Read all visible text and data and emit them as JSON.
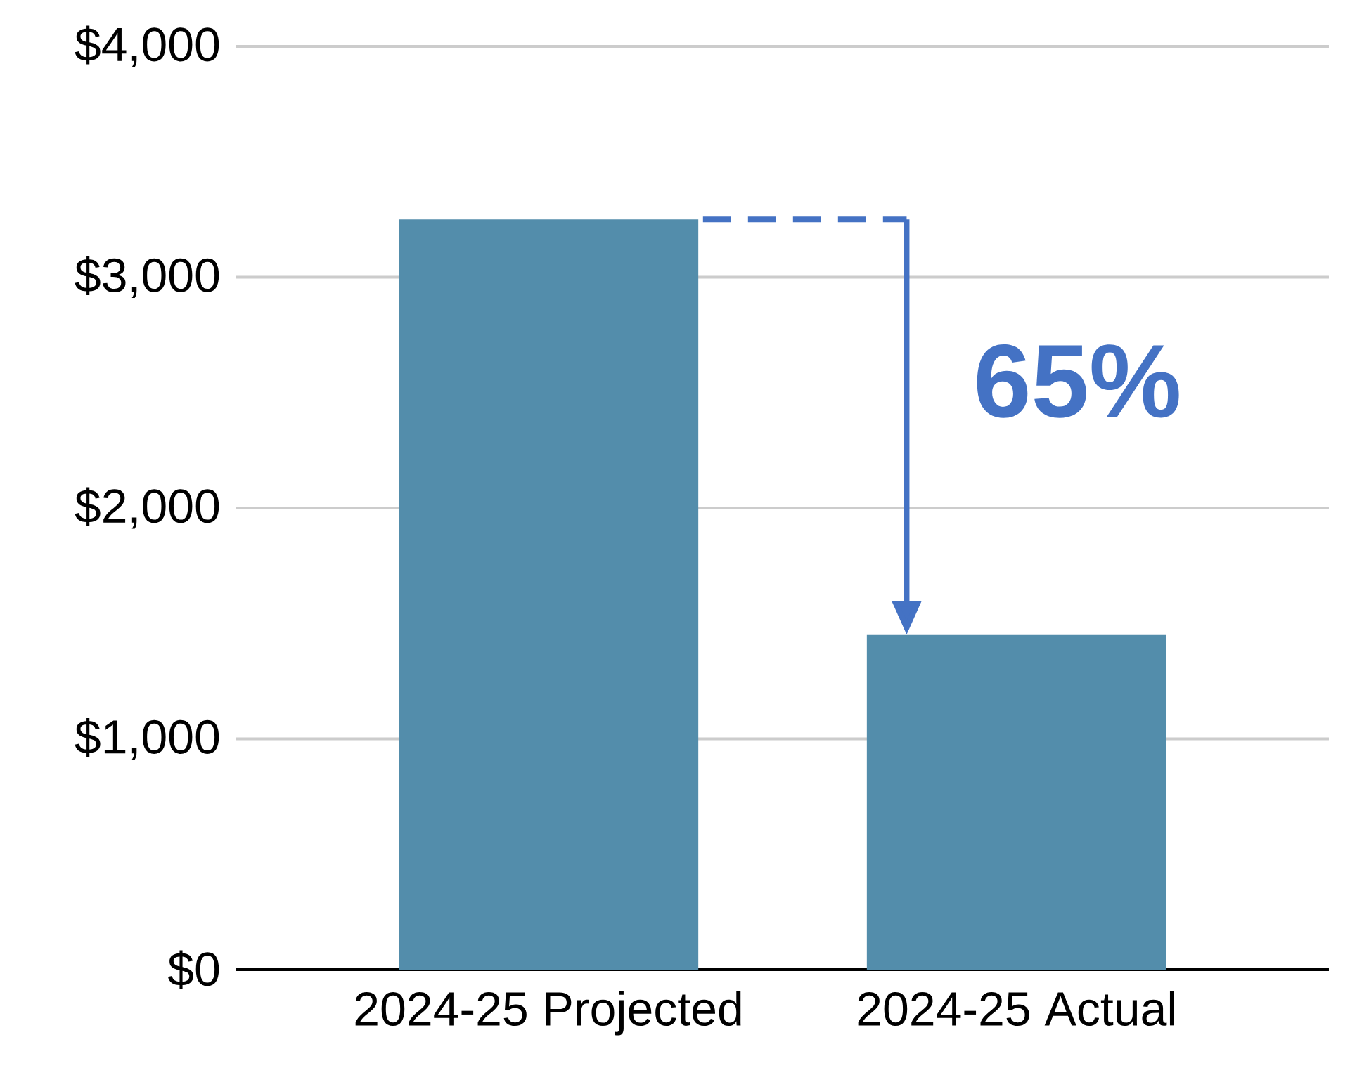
{
  "chart_data": {
    "type": "bar",
    "categories": [
      "2024-25 Projected",
      "2024-25 Actual"
    ],
    "values": [
      3250,
      1450
    ],
    "color": "#538dab",
    "ylim": [
      0,
      4000
    ],
    "yticks": [
      {
        "value": 0,
        "label": "$0"
      },
      {
        "value": 1000,
        "label": "$1,000"
      },
      {
        "value": 2000,
        "label": "$2,000"
      },
      {
        "value": 3000,
        "label": "$3,000"
      },
      {
        "value": 4000,
        "label": "$4,000"
      }
    ],
    "grid": "y",
    "annotations": [
      "65%"
    ]
  }
}
